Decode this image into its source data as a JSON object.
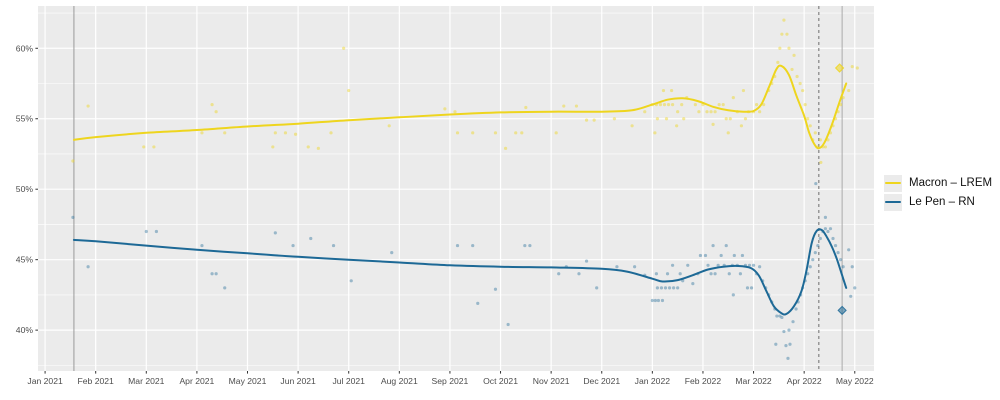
{
  "legend": {
    "items": [
      {
        "label": "Macron – LREM",
        "color": "#EED51E"
      },
      {
        "label": "Le Pen – RN",
        "color": "#1D6996"
      }
    ]
  },
  "chart_data": {
    "type": "scatter",
    "title": "",
    "xlabel": "",
    "ylabel": "",
    "x_unit": "months since Jan 2021",
    "x_tick_labels": [
      "Jan 2021",
      "Feb 2021",
      "Mar 2021",
      "Apr 2021",
      "May 2021",
      "Jun 2021",
      "Jul 2021",
      "Aug 2021",
      "Sep 2021",
      "Oct 2021",
      "Nov 2021",
      "Dec 2021",
      "Jan 2022",
      "Feb 2022",
      "Mar 2022",
      "Apr 2022",
      "May 2022"
    ],
    "y_ticks": [
      40,
      45,
      50,
      55,
      60
    ],
    "y_tick_labels": [
      "40%",
      "45%",
      "50%",
      "55%",
      "60%"
    ],
    "y_minor_ticks": [
      37.5,
      42.5,
      47.5,
      52.5,
      57.5,
      62.5
    ],
    "x_domain_months": [
      -0.14,
      16.38
    ],
    "y_domain_pct": [
      37.1,
      63.0
    ],
    "grid": "white major+minor on gray panel",
    "panel_bg": "#EBEBEB",
    "grid_color": "#FFFFFF",
    "axis_text_color": "#4D4D4D",
    "legend_position": "right",
    "reference_lines": [
      {
        "style": "solid",
        "x": 0.57,
        "color": "#9A9A9A"
      },
      {
        "style": "dashed",
        "x": 15.29,
        "color": "#6E6E6E"
      },
      {
        "style": "solid",
        "x": 15.75,
        "color": "#ABABAB"
      }
    ],
    "series": [
      {
        "name": "Macron – LREM",
        "color": "#EED51E",
        "point_opacity": 0.45,
        "result_marker": {
          "x": 15.7,
          "y": 58.6,
          "shape": "diamond"
        },
        "trend": [
          [
            0.57,
            53.5
          ],
          [
            1,
            53.7
          ],
          [
            2,
            54.0
          ],
          [
            3,
            54.2
          ],
          [
            4,
            54.45
          ],
          [
            5,
            54.65
          ],
          [
            6,
            54.9
          ],
          [
            7,
            55.1
          ],
          [
            8,
            55.3
          ],
          [
            9,
            55.45
          ],
          [
            10,
            55.5
          ],
          [
            11,
            55.5
          ],
          [
            11.6,
            55.6
          ],
          [
            12.0,
            56.0
          ],
          [
            12.3,
            56.35
          ],
          [
            12.6,
            56.45
          ],
          [
            12.9,
            56.25
          ],
          [
            13.2,
            55.85
          ],
          [
            13.5,
            55.6
          ],
          [
            13.8,
            55.5
          ],
          [
            14.0,
            55.55
          ],
          [
            14.15,
            56.0
          ],
          [
            14.3,
            57.2
          ],
          [
            14.45,
            58.5
          ],
          [
            14.55,
            58.75
          ],
          [
            14.7,
            58.1
          ],
          [
            14.85,
            56.6
          ],
          [
            15.0,
            55.2
          ],
          [
            15.1,
            54.0
          ],
          [
            15.2,
            53.2
          ],
          [
            15.29,
            52.9
          ],
          [
            15.4,
            53.3
          ],
          [
            15.55,
            54.6
          ],
          [
            15.7,
            56.2
          ],
          [
            15.83,
            57.5
          ]
        ],
        "points": [
          [
            0.55,
            52.0
          ],
          [
            0.85,
            55.9
          ],
          [
            1.95,
            53.0
          ],
          [
            2.15,
            53.0
          ],
          [
            3.1,
            54.0
          ],
          [
            3.3,
            56.0
          ],
          [
            3.38,
            55.5
          ],
          [
            3.55,
            54.0
          ],
          [
            4.5,
            53.0
          ],
          [
            4.55,
            54.0
          ],
          [
            4.75,
            54.0
          ],
          [
            4.95,
            53.9
          ],
          [
            5.2,
            53.0
          ],
          [
            5.4,
            52.9
          ],
          [
            5.65,
            54.0
          ],
          [
            5.9,
            60.0
          ],
          [
            6.0,
            57.0
          ],
          [
            6.8,
            54.5
          ],
          [
            7.9,
            55.7
          ],
          [
            8.1,
            55.5
          ],
          [
            8.15,
            54.0
          ],
          [
            8.45,
            54.0
          ],
          [
            8.9,
            54.0
          ],
          [
            9.1,
            52.9
          ],
          [
            9.3,
            54.0
          ],
          [
            9.42,
            54.0
          ],
          [
            9.5,
            55.8
          ],
          [
            10.1,
            54.0
          ],
          [
            10.25,
            55.9
          ],
          [
            10.5,
            55.9
          ],
          [
            10.7,
            54.9
          ],
          [
            10.85,
            54.9
          ],
          [
            11.25,
            55.0
          ],
          [
            11.6,
            54.5
          ],
          [
            11.85,
            55.5
          ],
          [
            12.0,
            56.0
          ],
          [
            12.08,
            56.0
          ],
          [
            12.16,
            56.0
          ],
          [
            12.24,
            56.0
          ],
          [
            12.32,
            56.0
          ],
          [
            12.4,
            56.0
          ],
          [
            12.22,
            57.0
          ],
          [
            12.38,
            57.0
          ],
          [
            12.1,
            55.0
          ],
          [
            12.28,
            55.0
          ],
          [
            12.5,
            55.5
          ],
          [
            12.58,
            56.0
          ],
          [
            12.68,
            56.5
          ],
          [
            12.05,
            54.0
          ],
          [
            12.48,
            54.5
          ],
          [
            12.62,
            55.0
          ],
          [
            12.85,
            56.0
          ],
          [
            12.92,
            55.5
          ],
          [
            13.0,
            56.0
          ],
          [
            13.08,
            55.5
          ],
          [
            13.16,
            55.5
          ],
          [
            13.24,
            55.5
          ],
          [
            13.32,
            56.0
          ],
          [
            13.4,
            56.0
          ],
          [
            13.46,
            55.0
          ],
          [
            13.54,
            55.0
          ],
          [
            13.6,
            56.5
          ],
          [
            13.68,
            55.5
          ],
          [
            13.76,
            54.5
          ],
          [
            13.84,
            55.0
          ],
          [
            13.2,
            54.6
          ],
          [
            13.5,
            54.0
          ],
          [
            13.8,
            57.0
          ],
          [
            13.9,
            55.5
          ],
          [
            14.0,
            55.5
          ],
          [
            14.06,
            56.0
          ],
          [
            14.12,
            55.5
          ],
          [
            14.2,
            56.0
          ],
          [
            14.3,
            57.0
          ],
          [
            14.36,
            57.5
          ],
          [
            14.42,
            58.0
          ],
          [
            14.48,
            59.0
          ],
          [
            14.52,
            60.0
          ],
          [
            14.56,
            61.0
          ],
          [
            14.6,
            62.0
          ],
          [
            14.66,
            61.0
          ],
          [
            14.7,
            60.0
          ],
          [
            14.76,
            58.5
          ],
          [
            14.8,
            59.5
          ],
          [
            14.86,
            58.0
          ],
          [
            14.92,
            57.5
          ],
          [
            14.97,
            57.0
          ],
          [
            15.02,
            56.0
          ],
          [
            15.07,
            55.0
          ],
          [
            15.12,
            54.5
          ],
          [
            15.17,
            53.5
          ],
          [
            15.22,
            54.0
          ],
          [
            15.27,
            53.0
          ],
          [
            15.32,
            53.5
          ],
          [
            15.37,
            53.0
          ],
          [
            15.42,
            53.0
          ],
          [
            15.33,
            51.9
          ],
          [
            15.47,
            53.5
          ],
          [
            15.52,
            54.0
          ],
          [
            15.57,
            54.5
          ],
          [
            15.62,
            55.0
          ],
          [
            15.67,
            55.5
          ],
          [
            15.72,
            56.0
          ],
          [
            15.77,
            56.5
          ],
          [
            15.88,
            57.0
          ],
          [
            15.95,
            58.7
          ],
          [
            16.05,
            58.6
          ]
        ]
      },
      {
        "name": "Le Pen – RN",
        "color": "#1D6996",
        "point_opacity": 0.4,
        "result_marker": {
          "x": 15.75,
          "y": 41.4,
          "shape": "diamond"
        },
        "trend": [
          [
            0.57,
            46.4
          ],
          [
            1,
            46.3
          ],
          [
            2,
            46.0
          ],
          [
            3,
            45.7
          ],
          [
            4,
            45.45
          ],
          [
            5,
            45.2
          ],
          [
            6,
            45.0
          ],
          [
            7,
            44.8
          ],
          [
            8,
            44.6
          ],
          [
            9,
            44.5
          ],
          [
            10,
            44.45
          ],
          [
            11,
            44.35
          ],
          [
            11.5,
            44.15
          ],
          [
            12.0,
            43.65
          ],
          [
            12.2,
            43.45
          ],
          [
            12.5,
            43.55
          ],
          [
            12.8,
            43.9
          ],
          [
            13.1,
            44.3
          ],
          [
            13.4,
            44.5
          ],
          [
            13.7,
            44.55
          ],
          [
            13.95,
            44.4
          ],
          [
            14.1,
            43.9
          ],
          [
            14.25,
            42.8
          ],
          [
            14.4,
            41.7
          ],
          [
            14.55,
            41.2
          ],
          [
            14.65,
            41.15
          ],
          [
            14.8,
            41.7
          ],
          [
            14.95,
            42.8
          ],
          [
            15.05,
            44.3
          ],
          [
            15.15,
            46.2
          ],
          [
            15.25,
            47.05
          ],
          [
            15.35,
            47.1
          ],
          [
            15.45,
            46.6
          ],
          [
            15.55,
            45.9
          ],
          [
            15.65,
            45.0
          ],
          [
            15.75,
            43.9
          ],
          [
            15.83,
            43.0
          ]
        ],
        "points": [
          [
            0.55,
            48.0
          ],
          [
            0.85,
            44.5
          ],
          [
            2.0,
            47.0
          ],
          [
            2.2,
            47.0
          ],
          [
            3.1,
            46.0
          ],
          [
            3.3,
            44.0
          ],
          [
            3.38,
            44.0
          ],
          [
            3.55,
            43.0
          ],
          [
            4.55,
            46.9
          ],
          [
            4.9,
            46.0
          ],
          [
            5.25,
            46.5
          ],
          [
            5.7,
            46.0
          ],
          [
            6.05,
            43.5
          ],
          [
            6.85,
            45.5
          ],
          [
            8.15,
            46.0
          ],
          [
            8.45,
            46.0
          ],
          [
            8.55,
            41.9
          ],
          [
            8.9,
            42.9
          ],
          [
            9.15,
            40.4
          ],
          [
            9.48,
            46.0
          ],
          [
            9.58,
            46.0
          ],
          [
            10.15,
            44.0
          ],
          [
            10.3,
            44.5
          ],
          [
            10.55,
            44.0
          ],
          [
            10.7,
            44.9
          ],
          [
            10.9,
            43.0
          ],
          [
            11.3,
            44.5
          ],
          [
            11.65,
            44.5
          ],
          [
            11.85,
            43.9
          ],
          [
            12.0,
            42.1
          ],
          [
            12.06,
            42.1
          ],
          [
            12.12,
            42.1
          ],
          [
            12.2,
            42.1
          ],
          [
            12.1,
            43.0
          ],
          [
            12.18,
            43.0
          ],
          [
            12.26,
            43.0
          ],
          [
            12.34,
            43.0
          ],
          [
            12.42,
            43.0
          ],
          [
            12.5,
            43.0
          ],
          [
            12.08,
            44.0
          ],
          [
            12.3,
            44.0
          ],
          [
            12.55,
            44.0
          ],
          [
            12.6,
            43.5
          ],
          [
            12.7,
            44.6
          ],
          [
            12.4,
            44.6
          ],
          [
            12.8,
            43.3
          ],
          [
            12.9,
            44.0
          ],
          [
            12.95,
            45.3
          ],
          [
            13.05,
            45.3
          ],
          [
            13.1,
            44.6
          ],
          [
            13.16,
            44.0
          ],
          [
            13.24,
            44.0
          ],
          [
            13.3,
            44.6
          ],
          [
            13.36,
            45.3
          ],
          [
            13.42,
            44.6
          ],
          [
            13.46,
            46.0
          ],
          [
            13.52,
            44.0
          ],
          [
            13.58,
            44.6
          ],
          [
            13.62,
            45.3
          ],
          [
            13.68,
            44.6
          ],
          [
            13.74,
            44.0
          ],
          [
            13.78,
            45.3
          ],
          [
            13.84,
            44.6
          ],
          [
            13.88,
            43.0
          ],
          [
            13.92,
            44.6
          ],
          [
            13.96,
            43.0
          ],
          [
            13.2,
            46.0
          ],
          [
            13.6,
            42.5
          ],
          [
            14.0,
            44.6
          ],
          [
            14.06,
            44.0
          ],
          [
            14.12,
            44.5
          ],
          [
            14.18,
            43.5
          ],
          [
            14.24,
            43.0
          ],
          [
            14.3,
            42.5
          ],
          [
            14.36,
            42.0
          ],
          [
            14.42,
            41.5
          ],
          [
            14.46,
            41.0
          ],
          [
            14.52,
            41.0
          ],
          [
            14.56,
            40.9
          ],
          [
            14.6,
            39.9
          ],
          [
            14.64,
            38.9
          ],
          [
            14.68,
            38.0
          ],
          [
            14.72,
            39.0
          ],
          [
            14.78,
            40.6
          ],
          [
            14.84,
            41.5
          ],
          [
            14.88,
            42.0
          ],
          [
            14.93,
            42.5
          ],
          [
            14.97,
            43.0
          ],
          [
            14.44,
            39.0
          ],
          [
            14.7,
            40.0
          ],
          [
            15.02,
            43.5
          ],
          [
            15.07,
            44.0
          ],
          [
            15.12,
            44.5
          ],
          [
            15.17,
            45.0
          ],
          [
            15.22,
            45.5
          ],
          [
            15.23,
            50.4
          ],
          [
            15.27,
            46.0
          ],
          [
            15.32,
            46.5
          ],
          [
            15.37,
            47.0
          ],
          [
            15.42,
            47.2
          ],
          [
            15.47,
            47.0
          ],
          [
            15.52,
            47.2
          ],
          [
            15.57,
            46.5
          ],
          [
            15.62,
            46.0
          ],
          [
            15.67,
            45.5
          ],
          [
            15.72,
            45.0
          ],
          [
            15.77,
            44.5
          ],
          [
            15.42,
            48.0
          ],
          [
            15.88,
            45.7
          ],
          [
            15.95,
            44.5
          ],
          [
            16.0,
            43.0
          ],
          [
            15.92,
            42.4
          ]
        ]
      }
    ]
  }
}
